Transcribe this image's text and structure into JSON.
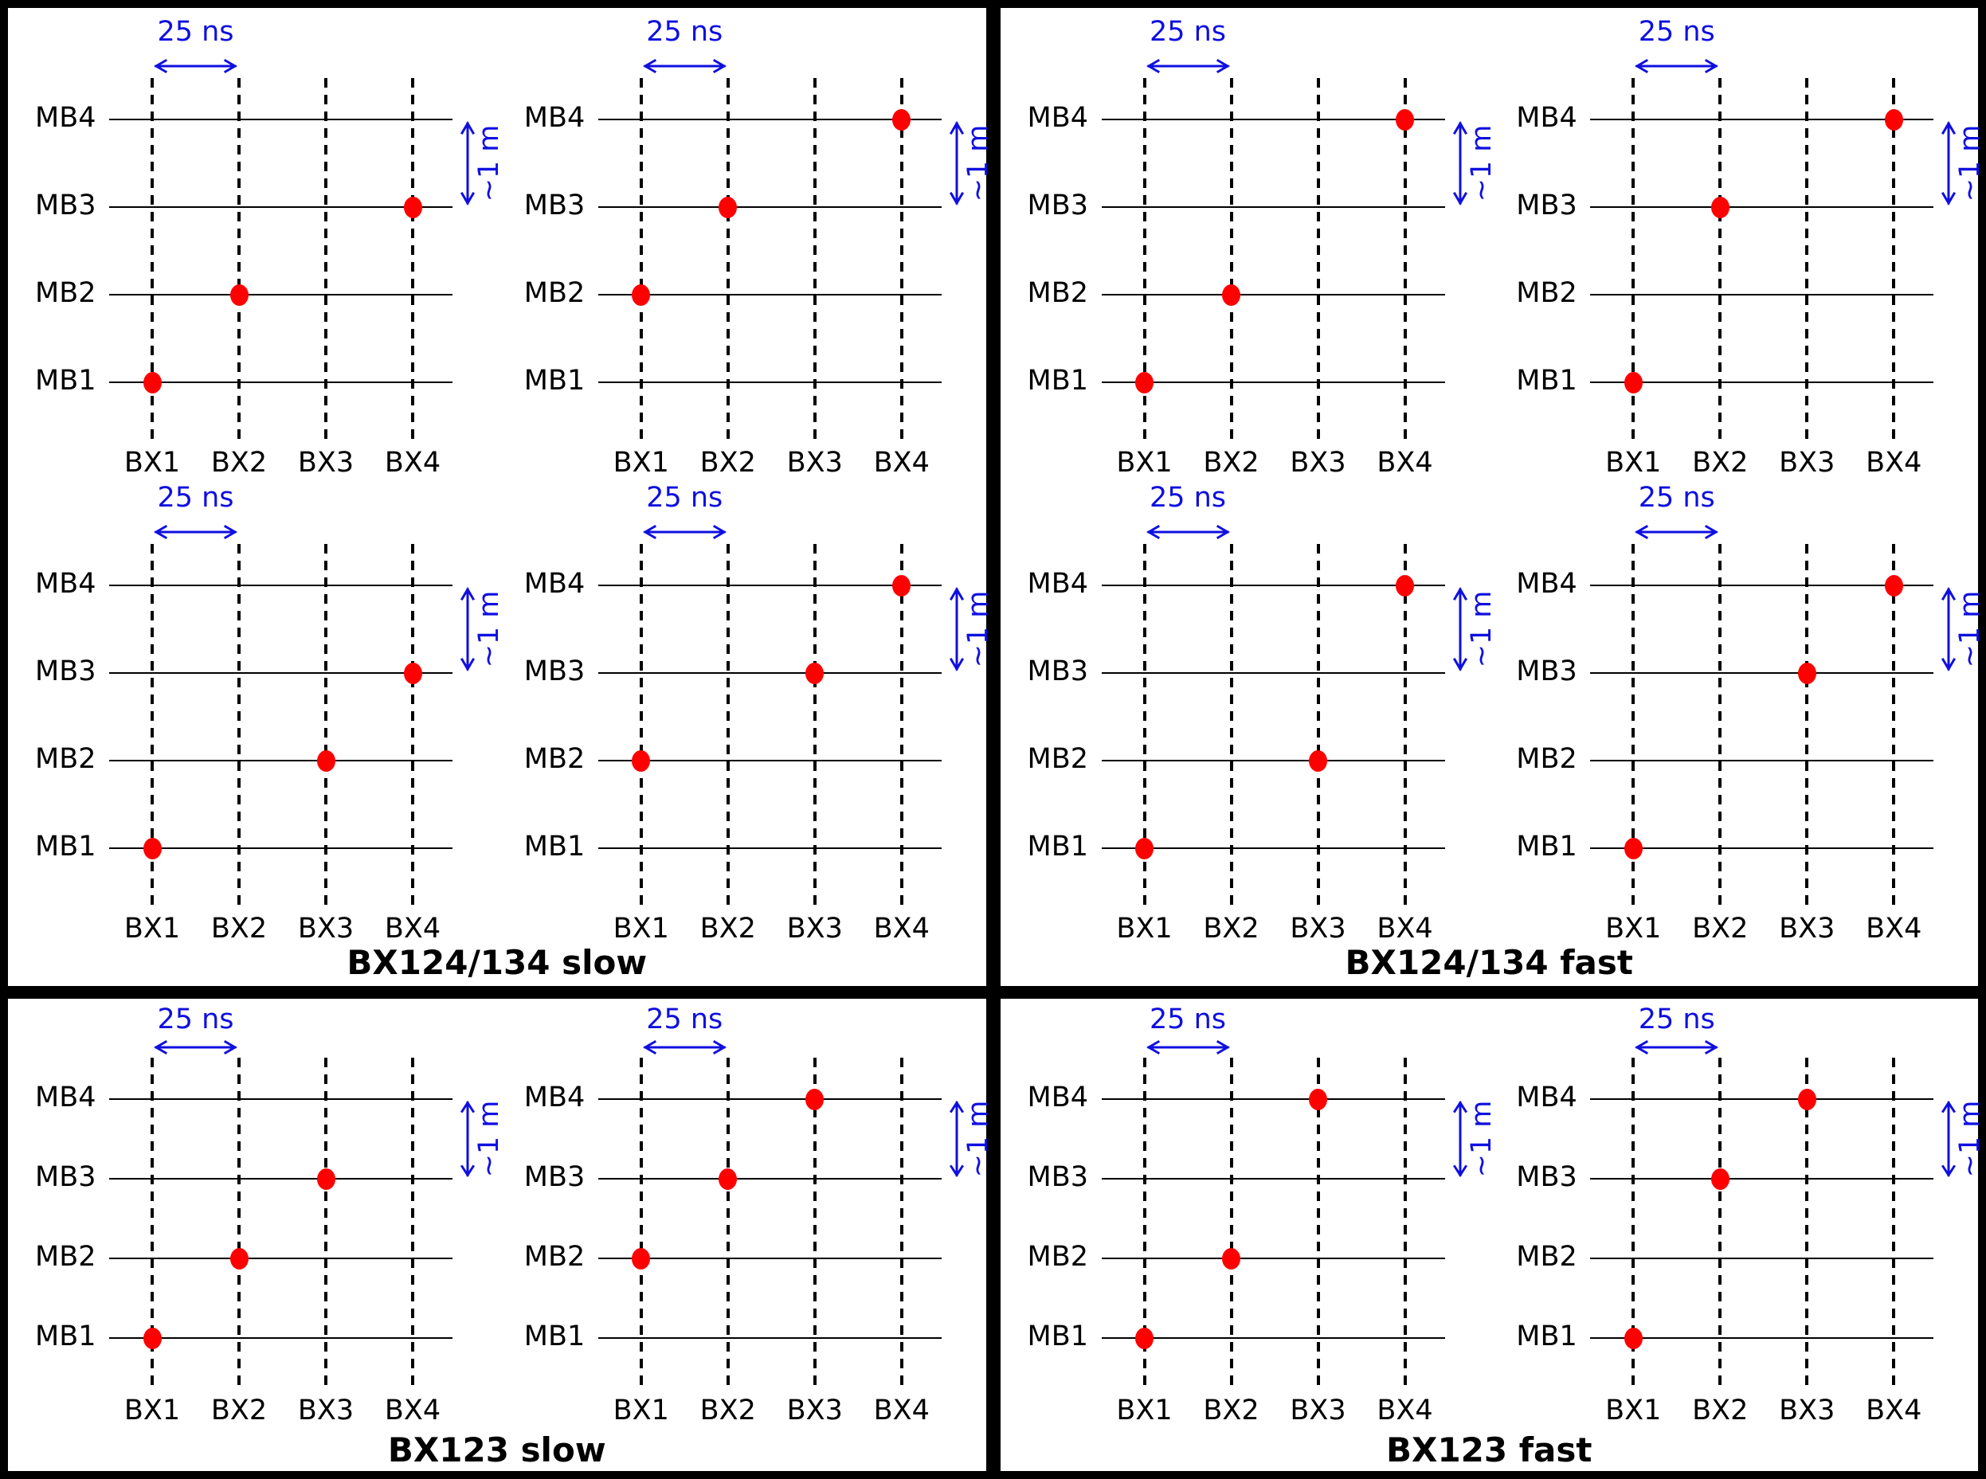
{
  "colors": {
    "hit": "#ff0000",
    "annotation": "#0f0fe0",
    "axis": "#000000",
    "panel_bg": "#ffffff",
    "frame": "#000000"
  },
  "labels": {
    "mb": [
      "MB4",
      "MB3",
      "MB2",
      "MB1"
    ],
    "bx": [
      "BX1",
      "BX2",
      "BX3",
      "BX4"
    ],
    "time_scale": "25 ns",
    "distance_scale": "~1 m"
  },
  "panels": [
    {
      "id": "bx124-134-slow",
      "title": "BX124/134 slow",
      "subplots": [
        {
          "hits": [
            {
              "bx": "BX1",
              "mb": "MB1"
            },
            {
              "bx": "BX2",
              "mb": "MB2"
            },
            {
              "bx": "BX4",
              "mb": "MB3"
            }
          ]
        },
        {
          "hits": [
            {
              "bx": "BX1",
              "mb": "MB2"
            },
            {
              "bx": "BX2",
              "mb": "MB3"
            },
            {
              "bx": "BX4",
              "mb": "MB4"
            }
          ]
        },
        {
          "hits": [
            {
              "bx": "BX1",
              "mb": "MB1"
            },
            {
              "bx": "BX3",
              "mb": "MB2"
            },
            {
              "bx": "BX4",
              "mb": "MB3"
            }
          ]
        },
        {
          "hits": [
            {
              "bx": "BX1",
              "mb": "MB2"
            },
            {
              "bx": "BX3",
              "mb": "MB3"
            },
            {
              "bx": "BX4",
              "mb": "MB4"
            }
          ]
        }
      ]
    },
    {
      "id": "bx124-134-fast",
      "title": "BX124/134 fast",
      "subplots": [
        {
          "hits": [
            {
              "bx": "BX1",
              "mb": "MB1"
            },
            {
              "bx": "BX2",
              "mb": "MB2"
            },
            {
              "bx": "BX4",
              "mb": "MB4"
            }
          ]
        },
        {
          "hits": [
            {
              "bx": "BX1",
              "mb": "MB1"
            },
            {
              "bx": "BX2",
              "mb": "MB3"
            },
            {
              "bx": "BX4",
              "mb": "MB4"
            }
          ]
        },
        {
          "hits": [
            {
              "bx": "BX1",
              "mb": "MB1"
            },
            {
              "bx": "BX3",
              "mb": "MB2"
            },
            {
              "bx": "BX4",
              "mb": "MB4"
            }
          ]
        },
        {
          "hits": [
            {
              "bx": "BX1",
              "mb": "MB1"
            },
            {
              "bx": "BX3",
              "mb": "MB3"
            },
            {
              "bx": "BX4",
              "mb": "MB4"
            }
          ]
        }
      ]
    },
    {
      "id": "bx123-slow",
      "title": "BX123 slow",
      "subplots": [
        {
          "hits": [
            {
              "bx": "BX1",
              "mb": "MB1"
            },
            {
              "bx": "BX2",
              "mb": "MB2"
            },
            {
              "bx": "BX3",
              "mb": "MB3"
            }
          ]
        },
        {
          "hits": [
            {
              "bx": "BX1",
              "mb": "MB2"
            },
            {
              "bx": "BX2",
              "mb": "MB3"
            },
            {
              "bx": "BX3",
              "mb": "MB4"
            }
          ]
        }
      ]
    },
    {
      "id": "bx123-fast",
      "title": "BX123 fast",
      "subplots": [
        {
          "hits": [
            {
              "bx": "BX1",
              "mb": "MB1"
            },
            {
              "bx": "BX2",
              "mb": "MB2"
            },
            {
              "bx": "BX3",
              "mb": "MB4"
            }
          ]
        },
        {
          "hits": [
            {
              "bx": "BX1",
              "mb": "MB1"
            },
            {
              "bx": "BX2",
              "mb": "MB3"
            },
            {
              "bx": "BX3",
              "mb": "MB4"
            }
          ]
        }
      ]
    }
  ]
}
